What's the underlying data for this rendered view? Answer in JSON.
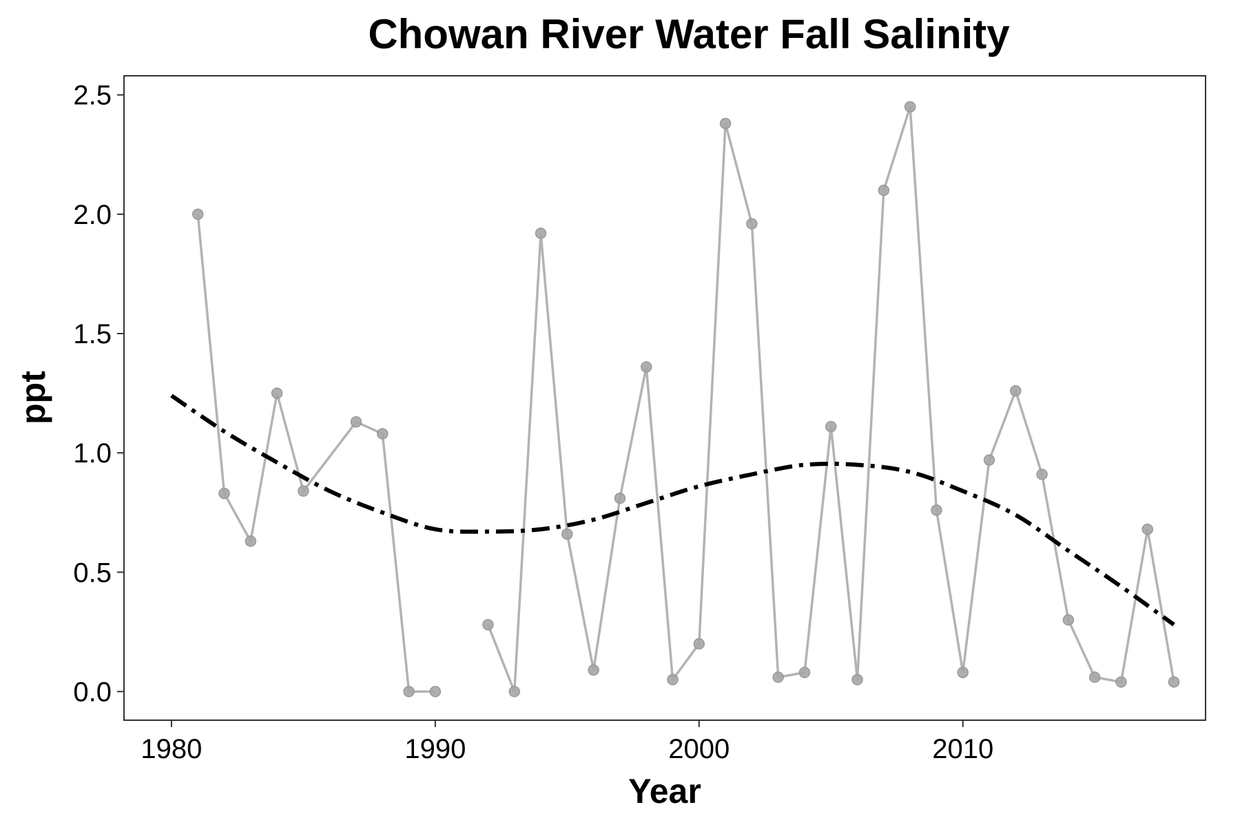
{
  "chart_data": {
    "type": "line",
    "title": "Chowan River Water Fall Salinity",
    "xlabel": "Year",
    "ylabel": "ppt",
    "xlim": [
      1978.2,
      2019.2
    ],
    "ylim": [
      -0.12,
      2.58
    ],
    "xticks": [
      1980,
      1990,
      2000,
      2010
    ],
    "xtick_labels": [
      "1980",
      "1990",
      "2000",
      "2010"
    ],
    "yticks": [
      0.0,
      0.5,
      1.0,
      1.5,
      2.0,
      2.5
    ],
    "ytick_labels": [
      "0.0",
      "0.5",
      "1.0",
      "1.5",
      "2.0",
      "2.5"
    ],
    "grid": false,
    "legend": "none",
    "series": [
      {
        "style": "line+points",
        "color": "#b3b3b3",
        "segments": [
          {
            "x": [
              1981,
              1982,
              1983,
              1984,
              1985,
              1987,
              1988,
              1989,
              1990
            ],
            "y": [
              2.0,
              0.83,
              0.63,
              1.25,
              0.84,
              1.13,
              1.08,
              0.0,
              0.0
            ]
          },
          {
            "x": [
              1992,
              1993,
              1994,
              1995,
              1996,
              1997,
              1998,
              1999,
              2000,
              2001,
              2002,
              2003,
              2004,
              2005,
              2006,
              2007,
              2008,
              2009,
              2010,
              2011,
              2012,
              2013,
              2014,
              2015,
              2016,
              2017,
              2018
            ],
            "y": [
              0.28,
              0.0,
              1.92,
              0.66,
              0.09,
              0.81,
              1.36,
              0.05,
              0.2,
              2.38,
              1.96,
              0.06,
              0.08,
              1.11,
              0.05,
              2.1,
              2.45,
              0.76,
              0.08,
              0.97,
              1.26,
              0.91,
              0.3,
              0.06,
              0.04,
              0.68,
              0.04
            ]
          }
        ]
      },
      {
        "style": "dash-dot trend",
        "color": "#000000",
        "x": [
          1980,
          1982,
          1984,
          1986,
          1988,
          1990,
          1992,
          1994,
          1996,
          1998,
          2000,
          2002,
          2004,
          2006,
          2008,
          2010,
          2012,
          2014,
          2016,
          2018
        ],
        "y": [
          1.24,
          1.09,
          0.96,
          0.84,
          0.75,
          0.68,
          0.67,
          0.68,
          0.72,
          0.79,
          0.86,
          0.91,
          0.95,
          0.95,
          0.92,
          0.84,
          0.74,
          0.59,
          0.44,
          0.28
        ]
      }
    ]
  }
}
